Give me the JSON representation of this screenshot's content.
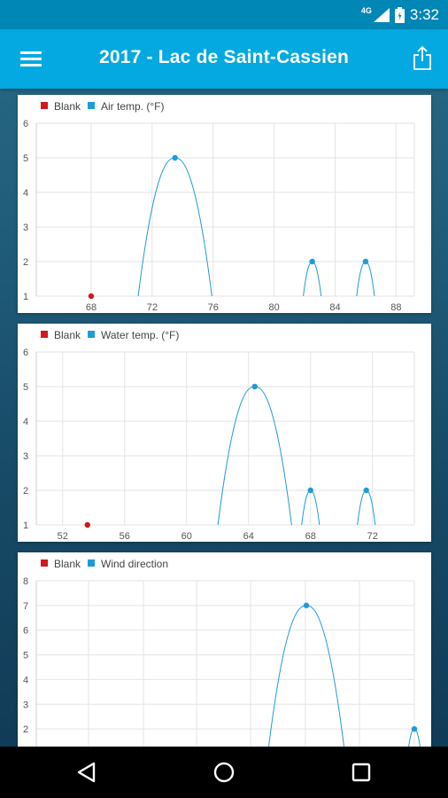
{
  "status_bar": {
    "network": "4G",
    "time": "3:32",
    "icons": [
      "signal-icon",
      "battery-icon"
    ]
  },
  "app_bar": {
    "title": "2017 - Lac de Saint-Cassien",
    "menu_icon": "hamburger-menu-icon",
    "share_icon": "share-icon"
  },
  "colors": {
    "series": "#1e9bd8",
    "blank": "#d0191c",
    "app_bar": "#03a9e0",
    "status_bar": "#0087b6"
  },
  "chart_data": [
    {
      "type": "line",
      "legend": [
        "Blank",
        "Air temp. (°F)"
      ],
      "legend_position": "top-left",
      "grid": true,
      "xticks": [
        68,
        72,
        76,
        80,
        84,
        88
      ],
      "xlim": [
        64.4,
        89.2
      ],
      "yticks": [
        1,
        2,
        3,
        4,
        5,
        6
      ],
      "ylim": [
        1,
        6
      ],
      "series": [
        {
          "name": "Blank",
          "points": [
            {
              "x": 68,
              "y": 1
            }
          ]
        },
        {
          "name": "Air temp. (°F)",
          "points": [
            {
              "x": 73.5,
              "y": 5
            },
            {
              "x": 82.5,
              "y": 2
            },
            {
              "x": 86.0,
              "y": 2
            }
          ]
        }
      ]
    },
    {
      "type": "line",
      "legend": [
        "Blank",
        "Water temp. (°F)"
      ],
      "legend_position": "top-left",
      "grid": true,
      "xticks": [
        52,
        56,
        60,
        64,
        68,
        72
      ],
      "xlim": [
        50.3,
        74.7
      ],
      "yticks": [
        1,
        2,
        3,
        4,
        5,
        6
      ],
      "ylim": [
        1,
        6
      ],
      "series": [
        {
          "name": "Blank",
          "points": [
            {
              "x": 53.6,
              "y": 1
            }
          ]
        },
        {
          "name": "Water temp. (°F)",
          "points": [
            {
              "x": 64.4,
              "y": 5
            },
            {
              "x": 68.0,
              "y": 2
            },
            {
              "x": 71.6,
              "y": 2
            }
          ]
        }
      ]
    },
    {
      "type": "line",
      "legend": [
        "Blank",
        "Wind direction"
      ],
      "legend_position": "top-left",
      "grid": true,
      "xticks": [],
      "xlim": [
        0,
        7
      ],
      "yticks": [
        2,
        3,
        4,
        5,
        6,
        7,
        8
      ],
      "ylim": [
        1,
        8
      ],
      "series": [
        {
          "name": "Blank",
          "points": []
        },
        {
          "name": "Wind direction",
          "points": [
            {
              "x": 5,
              "y": 7
            },
            {
              "x": 7,
              "y": 2
            }
          ]
        }
      ]
    }
  ],
  "nav": {
    "back": "back-icon",
    "home": "home-icon",
    "recents": "recents-icon"
  }
}
